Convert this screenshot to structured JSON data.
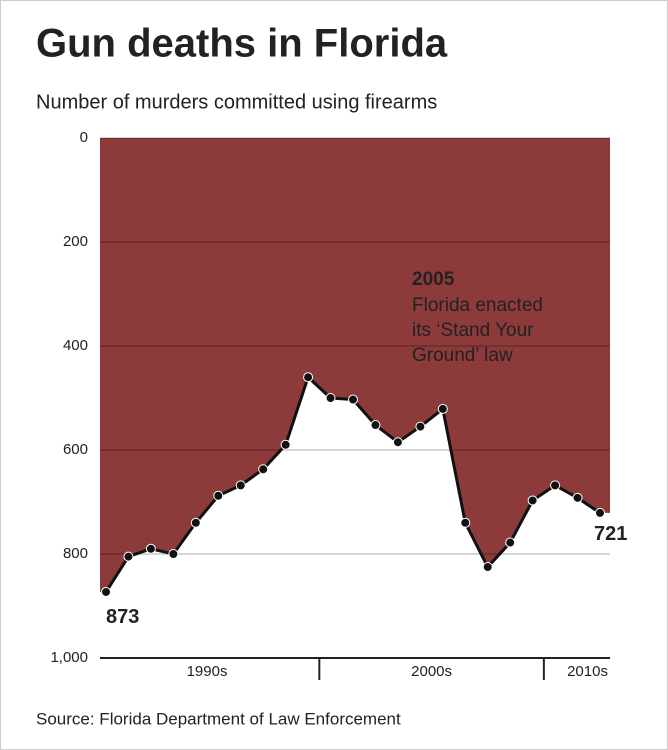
{
  "chart_data": {
    "type": "area",
    "title": "Gun deaths in Florida",
    "subtitle": "Number of murders committed using firearms",
    "source": "Source: Florida Department of Law Enforcement",
    "categories": [
      null,
      null,
      null,
      null,
      null,
      null,
      null,
      null,
      null,
      null,
      null,
      null,
      null,
      null,
      null,
      null,
      null,
      null,
      null,
      null,
      null,
      null,
      null
    ],
    "x_groups": [
      {
        "label": "1990s",
        "count": 10
      },
      {
        "label": "2000s",
        "count": 10
      },
      {
        "label": "2010s",
        "count": 3
      }
    ],
    "series": [
      {
        "name": null,
        "color": "#8c3a3a",
        "line_color": "#111111",
        "values": [
          873,
          805,
          790,
          800,
          740,
          688,
          668,
          637,
          590,
          460,
          500,
          503,
          552,
          585,
          555,
          521,
          740,
          825,
          778,
          697,
          668,
          692,
          721
        ]
      }
    ],
    "ylim": [
      0,
      1000
    ],
    "y_inverted": true,
    "yticks": [
      0,
      200,
      400,
      600,
      800,
      {
        "value": 1000,
        "label": "1,000"
      }
    ],
    "grid": true,
    "annotation": {
      "title": "2005",
      "lines": [
        "Florida enacted",
        "its ‘Stand Your",
        "Ground’ law"
      ]
    }
  }
}
